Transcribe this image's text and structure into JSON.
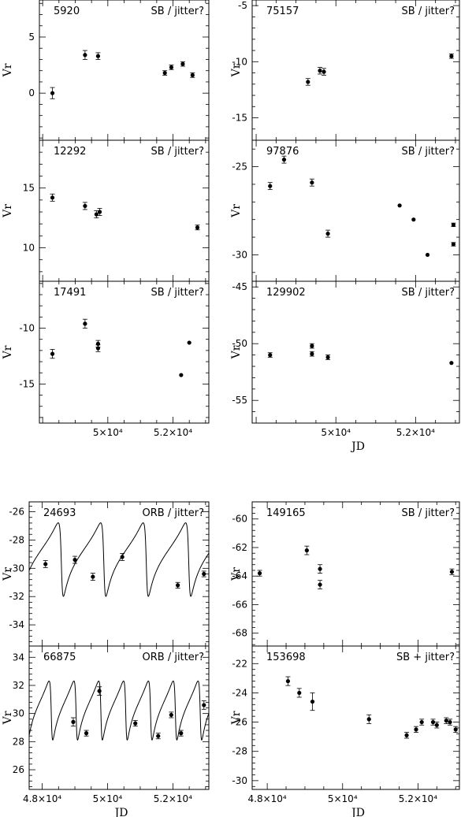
{
  "chart_data": [
    {
      "type": "scatter",
      "label_id": "5920",
      "label_type": "SB / jitter?",
      "ylabel": "Vr",
      "ylim": [
        -4.2,
        8.3
      ],
      "yticks": [
        0,
        5
      ],
      "xlim": [
        47900,
        53100
      ],
      "xticks": [],
      "points": [
        {
          "x": 48300,
          "y": 0.0,
          "err": 0.5
        },
        {
          "x": 49300,
          "y": 3.4,
          "err": 0.4
        },
        {
          "x": 49700,
          "y": 3.3,
          "err": 0.3
        },
        {
          "x": 51750,
          "y": 1.8,
          "err": 0.2
        },
        {
          "x": 51950,
          "y": 2.3,
          "err": 0.2
        },
        {
          "x": 52300,
          "y": 2.6,
          "err": 0.2
        },
        {
          "x": 52600,
          "y": 1.6,
          "err": 0.2
        }
      ]
    },
    {
      "type": "scatter",
      "label_id": "75157",
      "label_type": "SB / jitter?",
      "ylabel": "Vr",
      "ylim": [
        -17.0,
        -4.5
      ],
      "yticks": [
        -5,
        -10,
        -15
      ],
      "xlim": [
        47900,
        53100
      ],
      "xticks": [],
      "points": [
        {
          "x": 49300,
          "y": -11.8,
          "err": 0.3
        },
        {
          "x": 49600,
          "y": -10.8,
          "err": 0.3
        },
        {
          "x": 49700,
          "y": -10.9,
          "err": 0.3
        },
        {
          "x": 52900,
          "y": -9.5,
          "err": 0.2
        }
      ]
    },
    {
      "type": "scatter",
      "label_id": "12292",
      "label_type": "SB / jitter?",
      "ylabel": "Vr",
      "ylim": [
        7.2,
        19.0
      ],
      "yticks": [
        10,
        15
      ],
      "xlim": [
        47900,
        53100
      ],
      "xticks": [],
      "points": [
        {
          "x": 48300,
          "y": 14.2,
          "err": 0.3
        },
        {
          "x": 49300,
          "y": 13.5,
          "err": 0.3
        },
        {
          "x": 49650,
          "y": 12.8,
          "err": 0.3
        },
        {
          "x": 49750,
          "y": 13.0,
          "err": 0.3
        },
        {
          "x": 52750,
          "y": 11.7,
          "err": 0.2
        }
      ]
    },
    {
      "type": "scatter",
      "label_id": "97876",
      "label_type": "SB / jitter?",
      "ylabel": "Vr",
      "ylim": [
        -31.5,
        -23.5
      ],
      "yticks": [
        -25,
        -30
      ],
      "xlim": [
        47900,
        53100
      ],
      "xticks": [],
      "points": [
        {
          "x": 48350,
          "y": -26.1,
          "err": 0.2
        },
        {
          "x": 48700,
          "y": -24.6,
          "err": 0.2
        },
        {
          "x": 49400,
          "y": -25.9,
          "err": 0.2
        },
        {
          "x": 49800,
          "y": -28.8,
          "err": 0.2
        },
        {
          "x": 51600,
          "y": -27.2,
          "err": 0.05
        },
        {
          "x": 51950,
          "y": -28.0,
          "err": 0.05
        },
        {
          "x": 52300,
          "y": -30.0,
          "err": 0.05
        },
        {
          "x": 52950,
          "y": -28.3,
          "err": 0.1
        },
        {
          "x": 52950,
          "y": -29.4,
          "err": 0.1
        }
      ]
    },
    {
      "type": "scatter",
      "label_id": "17491",
      "label_type": "SB / jitter?",
      "ylabel": "Vr",
      "ylim": [
        -18.5,
        -5.8
      ],
      "yticks": [
        -10,
        -15
      ],
      "xlim": [
        47900,
        53100
      ],
      "xticks": [
        50000.0,
        52000.0
      ],
      "xtick_labels": [
        "5×10⁴",
        "5.2×10⁴"
      ],
      "points": [
        {
          "x": 48300,
          "y": -12.3,
          "err": 0.4
        },
        {
          "x": 49300,
          "y": -9.6,
          "err": 0.4
        },
        {
          "x": 49700,
          "y": -11.4,
          "err": 0.3
        },
        {
          "x": 49700,
          "y": -11.8,
          "err": 0.3
        },
        {
          "x": 52250,
          "y": -14.2,
          "err": 0.1
        },
        {
          "x": 52500,
          "y": -11.3,
          "err": 0.1
        }
      ]
    },
    {
      "type": "scatter",
      "label_id": "129902",
      "label_type": "SB / jitter?",
      "ylabel": "Vr",
      "ylim": [
        -57.0,
        -44.5
      ],
      "yticks": [
        -45,
        -50,
        -55
      ],
      "xlim": [
        47900,
        53100
      ],
      "xticks": [
        50000.0,
        52000.0
      ],
      "xtick_labels": [
        "5×10⁴",
        "5.2×10⁴"
      ],
      "xlabel": "JD",
      "points": [
        {
          "x": 48350,
          "y": -51.0,
          "err": 0.2
        },
        {
          "x": 49400,
          "y": -50.2,
          "err": 0.2
        },
        {
          "x": 49400,
          "y": -50.9,
          "err": 0.2
        },
        {
          "x": 49800,
          "y": -51.2,
          "err": 0.2
        },
        {
          "x": 52900,
          "y": -51.7,
          "err": 0.1
        }
      ]
    },
    {
      "type": "scatter",
      "label_id": "24693",
      "label_type": "ORB / jitter?",
      "ylabel": "Vr",
      "ylim": [
        -35.5,
        -25.3
      ],
      "yticks": [
        -26,
        -28,
        -30,
        -32,
        -34
      ],
      "xlim": [
        47600,
        53100
      ],
      "xticks": [],
      "orbit": {
        "period": 1300,
        "phase": 48590,
        "center": -29.0,
        "amp": 2.6,
        "ecc": 0.65
      },
      "points": [
        {
          "x": 48100,
          "y": -29.7,
          "err": 0.25
        },
        {
          "x": 49000,
          "y": -29.4,
          "err": 0.25
        },
        {
          "x": 49550,
          "y": -30.6,
          "err": 0.25
        },
        {
          "x": 50450,
          "y": -29.2,
          "err": 0.25
        },
        {
          "x": 52150,
          "y": -31.2,
          "err": 0.2
        },
        {
          "x": 52950,
          "y": -30.4,
          "err": 0.2
        }
      ]
    },
    {
      "type": "scatter",
      "label_id": "149165",
      "label_type": "SB / jitter?",
      "ylabel": "Vr",
      "ylim": [
        -68.9,
        -58.8
      ],
      "yticks": [
        -60,
        -62,
        -64,
        -66,
        -68
      ],
      "xlim": [
        47600,
        53100
      ],
      "xticks": [],
      "points": [
        {
          "x": 47800,
          "y": -63.8,
          "err": 0.2
        },
        {
          "x": 49050,
          "y": -62.2,
          "err": 0.3
        },
        {
          "x": 49400,
          "y": -63.5,
          "err": 0.3
        },
        {
          "x": 49400,
          "y": -64.6,
          "err": 0.3
        },
        {
          "x": 52900,
          "y": -63.7,
          "err": 0.2
        }
      ]
    },
    {
      "type": "scatter",
      "label_id": "66875",
      "label_type": "ORB / jitter?",
      "ylabel": "Vr",
      "ylim": [
        24.6,
        34.8
      ],
      "yticks": [
        26,
        28,
        30,
        32,
        34
      ],
      "xlim": [
        47600,
        53100
      ],
      "xticks": [
        48000.0,
        50000.0,
        52000.0
      ],
      "xtick_labels": [
        "4.8×10⁴",
        "5×10⁴",
        "5.2×10⁴"
      ],
      "xlabel": "JD",
      "orbit": {
        "period": 760,
        "phase": 48280,
        "center": 30.5,
        "amp": 2.1,
        "ecc": 0.6
      },
      "points": [
        {
          "x": 48950,
          "y": 29.4,
          "err": 0.3
        },
        {
          "x": 49350,
          "y": 28.6,
          "err": 0.2
        },
        {
          "x": 49750,
          "y": 31.6,
          "err": 0.3
        },
        {
          "x": 50850,
          "y": 29.3,
          "err": 0.2
        },
        {
          "x": 51550,
          "y": 28.4,
          "err": 0.2
        },
        {
          "x": 51950,
          "y": 29.9,
          "err": 0.2
        },
        {
          "x": 52250,
          "y": 28.6,
          "err": 0.2
        },
        {
          "x": 52950,
          "y": 30.6,
          "err": 0.3
        }
      ]
    },
    {
      "type": "scatter",
      "label_id": "153698",
      "label_type": "SB + jitter?",
      "ylabel": "Vr",
      "ylim": [
        -30.6,
        -20.8
      ],
      "yticks": [
        -22,
        -24,
        -26,
        -28,
        -30
      ],
      "xlim": [
        47600,
        53100
      ],
      "xticks": [
        48000.0,
        50000.0,
        52000.0
      ],
      "xtick_labels": [
        "4.8×10⁴",
        "5×10⁴",
        "5.2×10⁴"
      ],
      "xlabel": "JD",
      "points": [
        {
          "x": 48550,
          "y": -23.2,
          "err": 0.3
        },
        {
          "x": 48850,
          "y": -24.0,
          "err": 0.3
        },
        {
          "x": 49200,
          "y": -24.6,
          "err": 0.6
        },
        {
          "x": 50700,
          "y": -25.8,
          "err": 0.3
        },
        {
          "x": 51700,
          "y": -26.9,
          "err": 0.2
        },
        {
          "x": 51950,
          "y": -26.5,
          "err": 0.2
        },
        {
          "x": 52100,
          "y": -26.0,
          "err": 0.2
        },
        {
          "x": 52400,
          "y": -26.0,
          "err": 0.2
        },
        {
          "x": 52500,
          "y": -26.2,
          "err": 0.2
        },
        {
          "x": 52750,
          "y": -25.9,
          "err": 0.2
        },
        {
          "x": 52850,
          "y": -26.0,
          "err": 0.2
        },
        {
          "x": 53000,
          "y": -26.5,
          "err": 0.2
        }
      ]
    }
  ]
}
